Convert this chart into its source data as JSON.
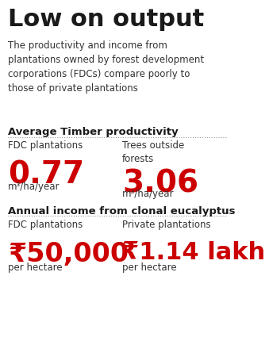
{
  "title": "Low on output",
  "subtitle": "The productivity and income from\nplantations owned by forest development\ncorporations (FDCs) compare poorly to\nthose of private plantations",
  "section1_title": "Average Timber productivity",
  "col1_label1": "FDC plantations",
  "col1_value1": "0.77",
  "col1_unit1": "m³/ha/year",
  "col2_label1": "Trees outside\nforests",
  "col2_value1": "3.06",
  "col2_unit1": "m³/ha/year",
  "section2_title": "Annual income from clonal eucalyptus",
  "col1_label2": "FDC plantations",
  "col1_value2": "₹50,000",
  "col1_unit2": "per hectare",
  "col2_label2": "Private plantations",
  "col2_value2": "₹1.14 lakh",
  "col2_unit2": "per hectare",
  "bg_color": "#ffffff",
  "title_color": "#1a1a1a",
  "text_color": "#333333",
  "red_color": "#cc0000",
  "section_title_color": "#1a1a1a",
  "label_color": "#333333",
  "divider_color": "#999999"
}
